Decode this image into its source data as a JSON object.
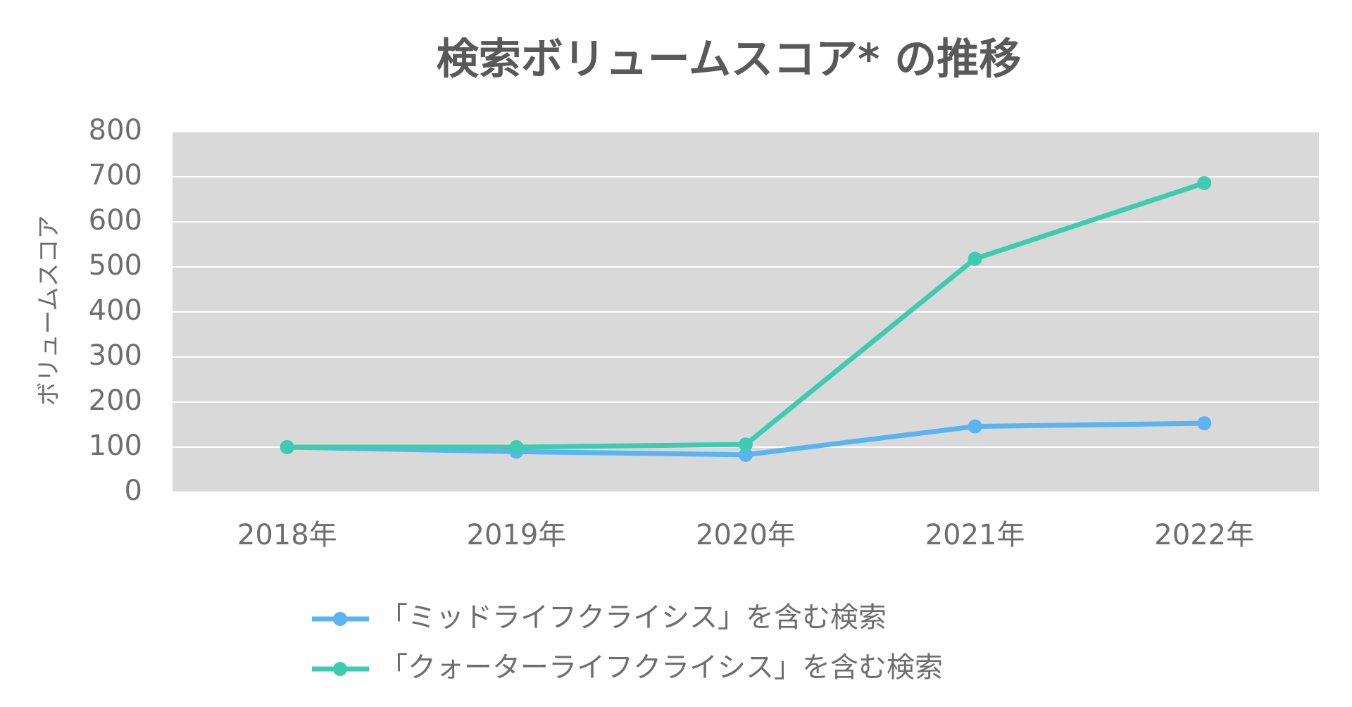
{
  "chart_data": {
    "type": "line",
    "title": "検索ボリュームスコア* の推移",
    "y_label": "ボリュームスコア",
    "categories": [
      "2018年",
      "2019年",
      "2020年",
      "2021年",
      "2022年"
    ],
    "series": [
      {
        "name": "「ミッドライフクライシス」を含む検索",
        "color": "#5ab4f0",
        "values": [
          100,
          90,
          83,
          146,
          153
        ]
      },
      {
        "name": "「クォーターライフクライシス」を含む検索",
        "color": "#3ecbb0",
        "values": [
          100,
          100,
          106,
          518,
          686
        ]
      }
    ],
    "ylim": [
      0,
      800
    ],
    "yticks": [
      0,
      100,
      200,
      300,
      400,
      500,
      600,
      700,
      800
    ],
    "grid": true,
    "legend": "bottom"
  }
}
